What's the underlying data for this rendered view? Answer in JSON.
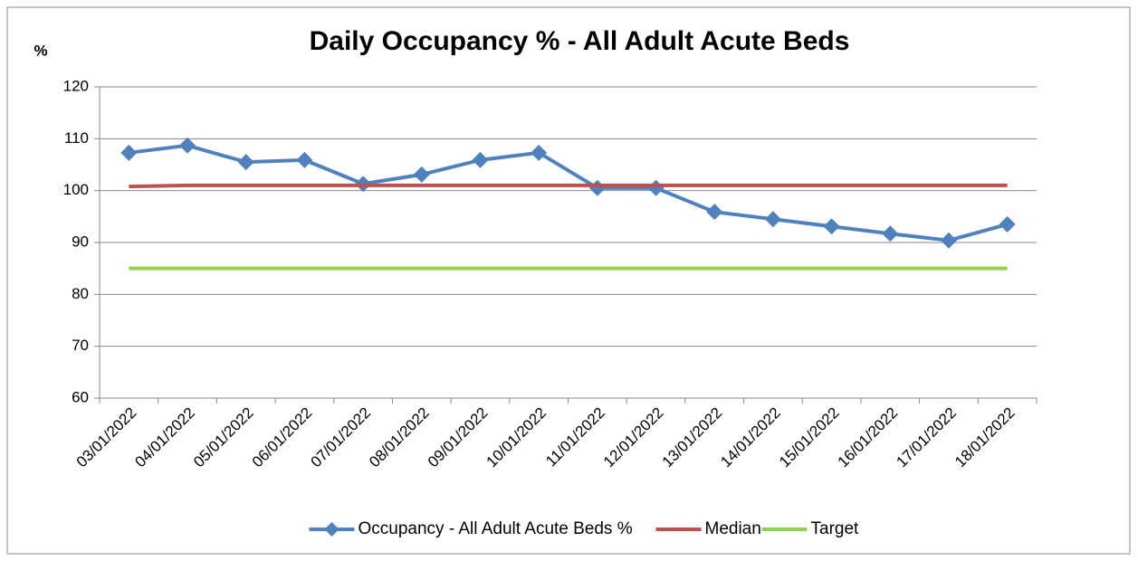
{
  "chart_data": {
    "type": "line",
    "title": "Daily Occupancy % - All Adult Acute Beds",
    "y_label": "%",
    "categories": [
      "03/01/2022",
      "04/01/2022",
      "05/01/2022",
      "06/01/2022",
      "07/01/2022",
      "08/01/2022",
      "09/01/2022",
      "10/01/2022",
      "11/01/2022",
      "12/01/2022",
      "13/01/2022",
      "14/01/2022",
      "15/01/2022",
      "16/01/2022",
      "17/01/2022",
      "18/01/2022"
    ],
    "series": [
      {
        "name": "Occupancy - All Adult Acute Beds %",
        "color": "#4f81bd",
        "marker": "diamond",
        "values": [
          107.3,
          108.7,
          105.5,
          105.9,
          101.3,
          103.1,
          105.9,
          107.3,
          100.5,
          100.5,
          95.9,
          94.5,
          93.1,
          91.7,
          90.4,
          93.5
        ]
      },
      {
        "name": "Median",
        "color": "#c0504d",
        "values": [
          100.8,
          101,
          101,
          101,
          101,
          101,
          101,
          101,
          101,
          101,
          101,
          101,
          101,
          101,
          101,
          101
        ]
      },
      {
        "name": "Target",
        "color": "#92d050",
        "values": [
          85,
          85,
          85,
          85,
          85,
          85,
          85,
          85,
          85,
          85,
          85,
          85,
          85,
          85,
          85,
          85
        ]
      }
    ],
    "ylim": [
      60,
      120
    ],
    "yticks": [
      60,
      70,
      80,
      90,
      100,
      110,
      120
    ],
    "grid": true,
    "legend": "bottom"
  }
}
